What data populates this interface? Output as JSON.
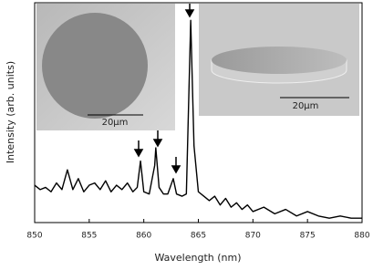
{
  "chart_data": {
    "type": "line",
    "xlabel": "Wavelength (nm)",
    "ylabel": "Intensity (arb. units)",
    "x": [
      850,
      850.5,
      851,
      851.5,
      852,
      852.5,
      853,
      853.5,
      854,
      854.5,
      855,
      855.5,
      856,
      856.5,
      857,
      857.5,
      858,
      858.5,
      859,
      859.4,
      859.7,
      860,
      860.5,
      861,
      861.1,
      861.4,
      861.8,
      862.2,
      862.7,
      863,
      863.5,
      863.9,
      864.3,
      864.6,
      865,
      865.5,
      866,
      866.5,
      867,
      867.5,
      868,
      868.5,
      869,
      869.5,
      870,
      871,
      872,
      873,
      874,
      875,
      876,
      877,
      878,
      879,
      880
    ],
    "series": [
      {
        "color": "#000000",
        "values": [
          0.17,
          0.15,
          0.16,
          0.14,
          0.18,
          0.15,
          0.24,
          0.15,
          0.2,
          0.14,
          0.17,
          0.18,
          0.15,
          0.19,
          0.14,
          0.17,
          0.15,
          0.18,
          0.14,
          0.16,
          0.28,
          0.14,
          0.13,
          0.26,
          0.34,
          0.16,
          0.13,
          0.13,
          0.2,
          0.13,
          0.12,
          0.13,
          0.92,
          0.35,
          0.14,
          0.12,
          0.1,
          0.12,
          0.08,
          0.11,
          0.07,
          0.09,
          0.06,
          0.08,
          0.05,
          0.07,
          0.04,
          0.06,
          0.03,
          0.05,
          0.03,
          0.02,
          0.03,
          0.02,
          0.02
        ]
      }
    ],
    "xlim": [
      850,
      880
    ],
    "xticks": [
      850,
      855,
      860,
      865,
      870,
      875,
      880
    ],
    "ylim": [
      0,
      1
    ],
    "insets": [
      {
        "scale_label": "20μm"
      },
      {
        "scale_label": "20μm"
      }
    ]
  }
}
